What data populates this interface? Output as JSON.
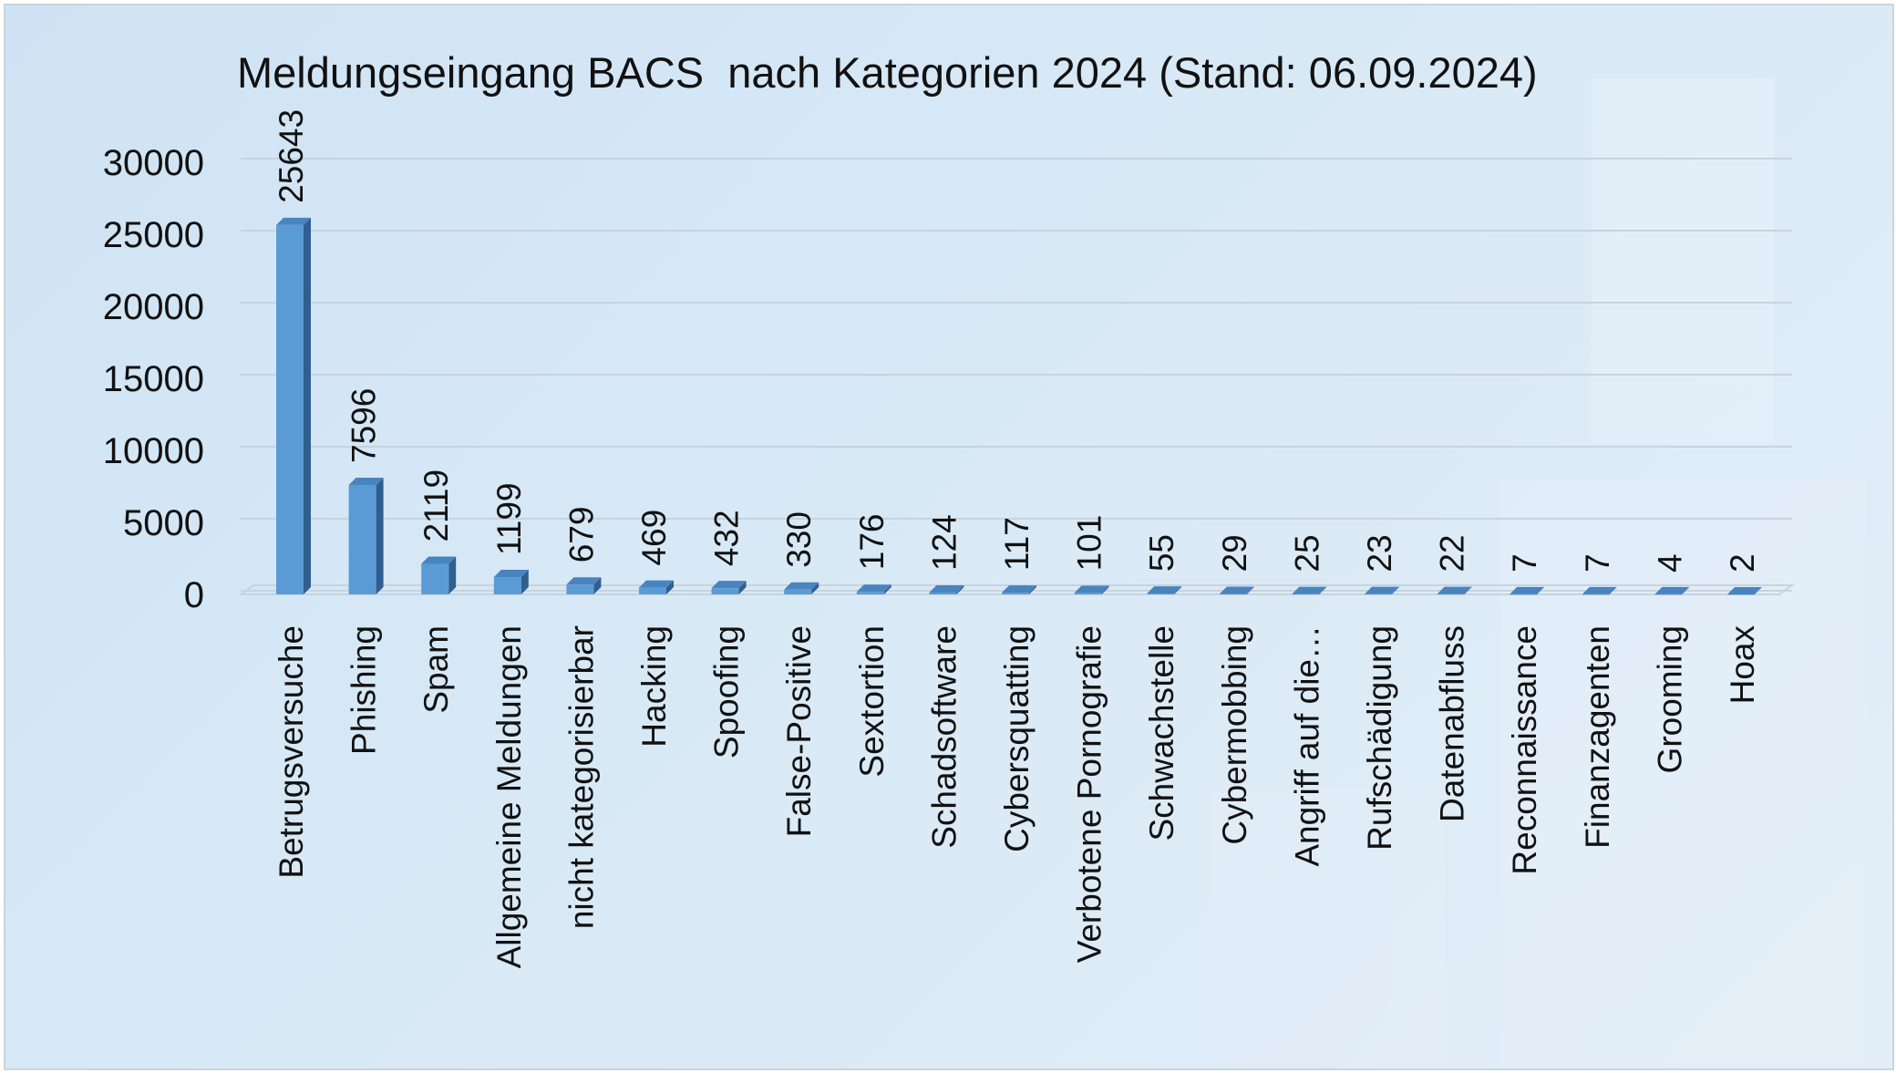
{
  "chart_data": {
    "type": "bar",
    "title": "Meldungseingang BACS  nach Kategorien 2024 (Stand: 06.09.2024)",
    "xlabel": "",
    "ylabel": "",
    "ylim": [
      0,
      30000
    ],
    "yticks": [
      "0",
      "5000",
      "10000",
      "15000",
      "20000",
      "25000",
      "30000"
    ],
    "grid": true,
    "bar_color": "#5b9bd5",
    "categories": [
      "Betrugsversuche",
      "Phishing",
      "Spam",
      "Allgemeine Meldungen",
      "nicht kategorisierbar",
      "Hacking",
      "Spoofing",
      "False-Positive",
      "Sextortion",
      "Schadsoftware",
      "Cybersquatting",
      "Verbotene Pornografie",
      "Schwachstelle",
      "Cybermobbing",
      "Angriff auf die…",
      "Rufschädigung",
      "Datenabfluss",
      "Reconnaissance",
      "Finanzagenten",
      "Grooming",
      "Hoax"
    ],
    "values": [
      25643,
      7596,
      2119,
      1199,
      679,
      469,
      432,
      330,
      176,
      124,
      117,
      101,
      55,
      29,
      25,
      23,
      22,
      7,
      7,
      4,
      2
    ]
  }
}
